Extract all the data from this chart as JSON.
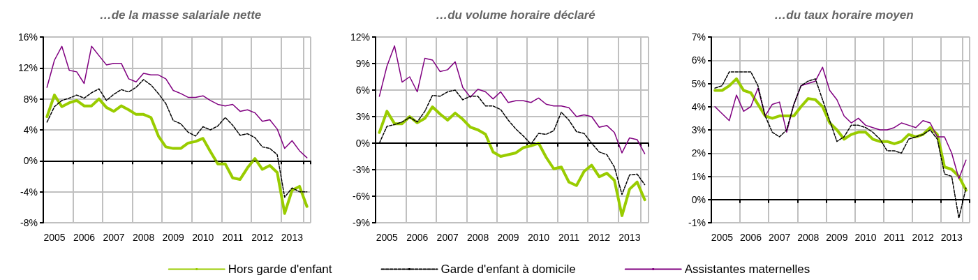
{
  "chart_data": [
    {
      "type": "line",
      "title": "…de la masse salariale nette",
      "marker": "none",
      "grid": true,
      "categories": [
        null,
        "2005",
        null,
        null,
        null,
        "2006",
        null,
        null,
        null,
        "2007",
        null,
        null,
        null,
        "2008",
        null,
        null,
        null,
        "2009",
        null,
        null,
        null,
        "2010",
        null,
        null,
        null,
        "2011",
        null,
        null,
        null,
        "2012",
        null,
        null,
        null,
        "2013",
        null,
        null
      ],
      "ylim": [
        -8,
        16
      ],
      "yticks": [
        {
          "value": -8,
          "label": "-8%"
        },
        {
          "value": -4,
          "label": "-4%"
        },
        {
          "value": 0,
          "label": "0%"
        },
        {
          "value": 4,
          "label": "4%"
        },
        {
          "value": 8,
          "label": "8%"
        },
        {
          "value": 12,
          "label": "12%"
        },
        {
          "value": 16,
          "label": "16%"
        }
      ],
      "ref_lines": [
        {
          "axis": "y",
          "value": 0,
          "color": "#000000"
        }
      ],
      "series": [
        {
          "color": "#99cc00",
          "values": [
            5.7,
            8.5,
            7.0,
            7.5,
            7.8,
            7.1,
            7.1,
            8.0,
            6.9,
            6.4,
            7.1,
            6.6,
            6.0,
            6.0,
            5.6,
            3.2,
            1.8,
            1.6,
            1.6,
            2.3,
            2.5,
            2.9,
            1.2,
            -0.4,
            -0.4,
            -2.2,
            -2.4,
            -0.9,
            0.3,
            -1.1,
            -0.6,
            -1.5,
            -6.8,
            -3.8,
            -3.3,
            -5.9
          ]
        },
        {
          "color": "#000000",
          "line_style": "dashed",
          "values": [
            5.0,
            7.0,
            7.8,
            8.1,
            8.5,
            8.1,
            8.8,
            9.3,
            7.8,
            8.6,
            9.2,
            8.9,
            9.5,
            10.5,
            9.8,
            8.7,
            7.4,
            5.2,
            4.8,
            3.7,
            3.2,
            4.4,
            4.0,
            4.5,
            5.6,
            4.6,
            3.3,
            3.5,
            3.0,
            1.8,
            1.6,
            0.8,
            -4.7,
            -3.5,
            -4.0,
            -4.0
          ]
        },
        {
          "color": "#800080",
          "values": [
            9.5,
            13.0,
            14.8,
            11.7,
            11.5,
            10.0,
            14.8,
            13.6,
            12.4,
            12.6,
            12.6,
            10.6,
            10.2,
            11.3,
            11.1,
            11.1,
            10.6,
            9.1,
            8.7,
            8.2,
            8.2,
            8.4,
            7.8,
            7.3,
            7.1,
            7.3,
            6.4,
            6.6,
            6.2,
            5.1,
            5.3,
            4.1,
            1.6,
            2.6,
            1.3,
            0.4
          ]
        }
      ]
    },
    {
      "type": "line",
      "title": "…du volume horaire déclaré",
      "marker": "none",
      "grid": true,
      "legend": "bottom",
      "categories": [
        null,
        "2005",
        null,
        null,
        null,
        "2006",
        null,
        null,
        null,
        "2007",
        null,
        null,
        null,
        "2008",
        null,
        null,
        null,
        "2009",
        null,
        null,
        null,
        "2010",
        null,
        null,
        null,
        "2011",
        null,
        null,
        null,
        "2012",
        null,
        null,
        null,
        "2013",
        null,
        null
      ],
      "ylim": [
        -9,
        12
      ],
      "yticks": [
        {
          "value": -9,
          "label": "-9%"
        },
        {
          "value": -6,
          "label": "-6%"
        },
        {
          "value": -3,
          "label": "-3%"
        },
        {
          "value": 0,
          "label": "0%"
        },
        {
          "value": 3,
          "label": "3%"
        },
        {
          "value": 6,
          "label": "6%"
        },
        {
          "value": 9,
          "label": "9%"
        },
        {
          "value": 12,
          "label": "12%"
        }
      ],
      "ref_lines": [
        {
          "axis": "y",
          "value": 0,
          "color": "#000000"
        }
      ],
      "series": [
        {
          "name": "Hors garde d'enfant",
          "color": "#99cc00",
          "values": [
            1.2,
            3.6,
            2.2,
            2.2,
            3.0,
            2.3,
            2.8,
            4.1,
            3.3,
            2.6,
            3.4,
            2.7,
            1.8,
            1.5,
            1.0,
            -1.0,
            -1.5,
            -1.3,
            -1.1,
            -0.5,
            -0.3,
            0.0,
            -1.6,
            -2.9,
            -2.7,
            -4.4,
            -4.8,
            -3.2,
            -2.5,
            -3.8,
            -3.4,
            -4.2,
            -8.2,
            -5.2,
            -4.4,
            -6.4
          ]
        },
        {
          "name": "Garde d'enfant à domicile",
          "color": "#000000",
          "line_style": "dashed",
          "values": [
            0.0,
            1.9,
            2.1,
            2.4,
            2.9,
            2.4,
            3.6,
            5.4,
            5.3,
            5.8,
            6.0,
            4.9,
            5.3,
            5.3,
            4.2,
            4.2,
            3.8,
            2.6,
            1.6,
            0.8,
            -0.1,
            1.1,
            1.0,
            1.4,
            3.5,
            2.6,
            1.3,
            1.1,
            0.0,
            -1.0,
            -1.3,
            -2.7,
            -5.8,
            -3.6,
            -3.5,
            -4.7
          ]
        },
        {
          "name": "Assistantes maternelles",
          "color": "#800080",
          "values": [
            5.3,
            8.7,
            11.0,
            6.9,
            7.5,
            5.8,
            9.6,
            9.4,
            8.1,
            8.3,
            9.2,
            6.3,
            5.2,
            6.1,
            5.8,
            5.0,
            5.8,
            4.6,
            4.8,
            4.8,
            4.6,
            5.1,
            4.4,
            4.2,
            4.2,
            4.0,
            3.0,
            3.2,
            3.0,
            1.8,
            2.0,
            1.2,
            -1.1,
            0.6,
            0.4,
            -1.2
          ]
        }
      ]
    },
    {
      "type": "line",
      "title": "…du taux horaire moyen",
      "marker": "none",
      "grid": true,
      "categories": [
        null,
        "2005",
        null,
        null,
        null,
        "2006",
        null,
        null,
        null,
        "2007",
        null,
        null,
        null,
        "2008",
        null,
        null,
        null,
        "2009",
        null,
        null,
        null,
        "2010",
        null,
        null,
        null,
        "2011",
        null,
        null,
        null,
        "2012",
        null,
        null,
        null,
        "2013",
        null,
        null
      ],
      "ylim": [
        -1,
        7
      ],
      "yticks": [
        {
          "value": -1,
          "label": "-1%"
        },
        {
          "value": 0,
          "label": "0%"
        },
        {
          "value": 1,
          "label": "1%"
        },
        {
          "value": 2,
          "label": "2%"
        },
        {
          "value": 3,
          "label": "3%"
        },
        {
          "value": 4,
          "label": "4%"
        },
        {
          "value": 5,
          "label": "5%"
        },
        {
          "value": 6,
          "label": "6%"
        },
        {
          "value": 7,
          "label": "7%"
        }
      ],
      "ref_lines": [
        {
          "axis": "y",
          "value": 0,
          "color": "#000000"
        }
      ],
      "series": [
        {
          "color": "#99cc00",
          "values": [
            4.7,
            4.7,
            4.9,
            5.2,
            4.7,
            4.6,
            4.1,
            3.6,
            3.5,
            3.6,
            3.6,
            3.6,
            4.0,
            4.35,
            4.3,
            4.0,
            3.3,
            3.0,
            2.6,
            2.8,
            2.9,
            2.9,
            2.6,
            2.5,
            2.5,
            2.4,
            2.5,
            2.8,
            2.7,
            2.8,
            3.1,
            2.8,
            1.4,
            1.3,
            1.0,
            0.4
          ]
        },
        {
          "color": "#000000",
          "line_style": "dashed",
          "values": [
            4.8,
            4.9,
            5.5,
            5.5,
            5.5,
            5.5,
            4.9,
            3.6,
            2.9,
            2.7,
            3.0,
            4.1,
            4.9,
            5.1,
            5.2,
            4.3,
            3.4,
            2.5,
            2.7,
            3.2,
            3.2,
            3.1,
            2.9,
            2.6,
            2.1,
            2.1,
            2.0,
            2.6,
            2.7,
            2.8,
            3.0,
            2.6,
            1.1,
            1.0,
            -0.8,
            0.5
          ]
        },
        {
          "color": "#800080",
          "values": [
            4.0,
            3.7,
            3.4,
            4.5,
            3.8,
            4.0,
            4.8,
            3.6,
            4.1,
            4.2,
            2.9,
            4.1,
            4.9,
            5.0,
            5.1,
            5.7,
            4.7,
            4.3,
            3.6,
            3.3,
            3.5,
            3.2,
            3.1,
            3.0,
            3.0,
            3.1,
            3.3,
            3.2,
            3.1,
            3.4,
            3.3,
            2.7,
            2.7,
            2.0,
            0.9,
            1.7
          ]
        }
      ]
    }
  ]
}
